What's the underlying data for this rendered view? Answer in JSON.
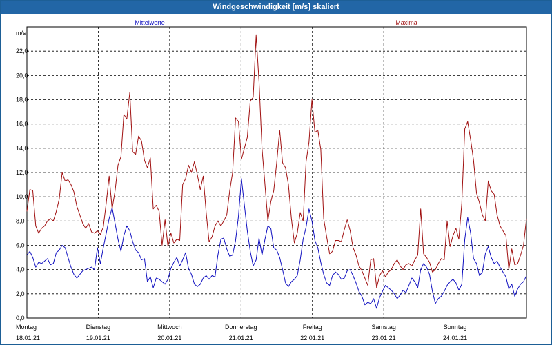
{
  "window": {
    "title": "Windgeschwindigkeit [m/s] skaliert"
  },
  "colors": {
    "mittel": "#1010c0",
    "maxima": "#a01010",
    "grid": "#000000",
    "titlebar": "#2266a6"
  },
  "chart_data": {
    "type": "line",
    "title": "Windgeschwindigkeit [m/s] skaliert",
    "ylabel": "m/s",
    "ylim": [
      0,
      24
    ],
    "yticks": [
      "0,0",
      "2,0",
      "4,0",
      "6,0",
      "8,0",
      "10,0",
      "12,0",
      "14,0",
      "16,0",
      "18,0",
      "20,0",
      "22,0"
    ],
    "xlim": [
      0,
      7
    ],
    "grid": true,
    "x_labels": [
      {
        "day": "Montag",
        "date": "18.01.21"
      },
      {
        "day": "Dienstag",
        "date": "19.01.21"
      },
      {
        "day": "Mittwoch",
        "date": "20.01.21"
      },
      {
        "day": "Donnerstag",
        "date": "21.01.21"
      },
      {
        "day": "Freitag",
        "date": "22.01.21"
      },
      {
        "day": "Samstag",
        "date": "23.01.21"
      },
      {
        "day": "Sonntag",
        "date": "24.01.21"
      }
    ],
    "series": [
      {
        "name": "Mittelwerte",
        "values": [
          5.2,
          5.5,
          5.0,
          4.2,
          4.6,
          4.5,
          4.7,
          4.9,
          4.4,
          4.5,
          5.4,
          5.6,
          6.0,
          5.8,
          5.0,
          4.2,
          3.6,
          3.3,
          3.6,
          3.9,
          4.0,
          4.1,
          4.2,
          4.0,
          5.8,
          4.5,
          5.8,
          7.0,
          8.2,
          9.1,
          7.8,
          6.5,
          5.5,
          6.8,
          7.6,
          7.2,
          6.3,
          5.6,
          5.4,
          4.8,
          4.9,
          3.0,
          3.4,
          2.5,
          3.3,
          3.2,
          3.0,
          2.8,
          3.2,
          4.1,
          4.6,
          5.0,
          4.3,
          4.8,
          5.4,
          4.1,
          3.6,
          2.8,
          2.6,
          2.8,
          3.3,
          3.5,
          3.2,
          3.5,
          3.4,
          5.2,
          6.5,
          6.6,
          5.7,
          5.1,
          5.2,
          6.4,
          8.4,
          11.5,
          9.3,
          7.2,
          5.5,
          4.3,
          4.8,
          6.6,
          5.2,
          6.5,
          7.6,
          7.4,
          5.8,
          5.6,
          5.0,
          4.0,
          2.9,
          2.6,
          3.0,
          3.2,
          3.5,
          4.8,
          6.5,
          7.5,
          9.0,
          8.0,
          6.4,
          5.8,
          4.6,
          3.6,
          2.9,
          2.7,
          3.5,
          3.8,
          3.6,
          3.2,
          3.3,
          3.9,
          4.0,
          3.5,
          2.9,
          2.2,
          1.8,
          1.1,
          1.3,
          1.2,
          1.6,
          0.8,
          1.7,
          2.2,
          2.7,
          2.5,
          2.3,
          2.0,
          1.6,
          1.9,
          2.3,
          2.1,
          2.7,
          3.3,
          3.0,
          2.5,
          4.0,
          4.5,
          4.2,
          3.6,
          2.2,
          1.2,
          1.6,
          1.8,
          2.2,
          2.7,
          3.0,
          3.2,
          2.9,
          2.3,
          2.8,
          6.5,
          8.3,
          7.0,
          4.9,
          4.5,
          3.5,
          3.8,
          5.3,
          5.9,
          5.0,
          4.5,
          4.7,
          4.2,
          3.8,
          3.4,
          2.4,
          2.8,
          1.8,
          2.4,
          2.8,
          3.0,
          3.5
        ]
      },
      {
        "name": "Maxima",
        "values": [
          8.8,
          10.6,
          10.5,
          7.6,
          7.0,
          7.4,
          7.6,
          8.0,
          8.2,
          8.0,
          8.8,
          9.8,
          12.0,
          11.3,
          11.4,
          11.0,
          10.4,
          9.2,
          8.5,
          7.8,
          7.4,
          7.8,
          7.1,
          7.0,
          7.2,
          6.9,
          7.5,
          9.5,
          11.7,
          9.0,
          10.5,
          12.6,
          13.3,
          16.8,
          16.4,
          18.6,
          13.7,
          13.5,
          15.0,
          14.6,
          13.0,
          12.4,
          13.2,
          9.0,
          9.3,
          8.8,
          6.0,
          8.1,
          5.9,
          7.0,
          6.2,
          6.5,
          6.4,
          11.0,
          11.5,
          12.6,
          12.0,
          12.9,
          11.8,
          10.6,
          11.7,
          8.7,
          6.3,
          6.7,
          7.6,
          8.0,
          7.6,
          8.0,
          8.5,
          10.5,
          12.0,
          16.5,
          16.2,
          13.1,
          14.0,
          14.9,
          17.9,
          18.2,
          23.3,
          19.5,
          14.0,
          11.0,
          8.0,
          9.6,
          10.5,
          12.8,
          15.5,
          12.8,
          12.4,
          11.0,
          8.2,
          6.2,
          7.0,
          8.7,
          8.0,
          12.9,
          14.5,
          18.0,
          15.3,
          15.5,
          13.9,
          8.2,
          6.7,
          5.3,
          5.5,
          6.4,
          6.4,
          6.3,
          7.3,
          8.1,
          7.2,
          5.8,
          5.2,
          4.3,
          3.9,
          3.3,
          2.7,
          4.8,
          4.9,
          2.5,
          3.5,
          3.9,
          3.4,
          3.8,
          4.0,
          4.5,
          4.8,
          4.3,
          4.0,
          4.4,
          4.5,
          4.3,
          4.8,
          5.2,
          9.0,
          5.3,
          5.0,
          4.6,
          3.8,
          4.0,
          4.5,
          4.9,
          4.8,
          8.0,
          5.9,
          6.8,
          7.4,
          6.5,
          9.5,
          15.6,
          16.2,
          14.7,
          13.0,
          10.3,
          9.5,
          8.5,
          8.0,
          11.3,
          10.5,
          10.2,
          8.5,
          7.6,
          7.2,
          6.8,
          4.0,
          5.7,
          4.4,
          4.5,
          5.2,
          6.0,
          8.2
        ]
      }
    ]
  }
}
